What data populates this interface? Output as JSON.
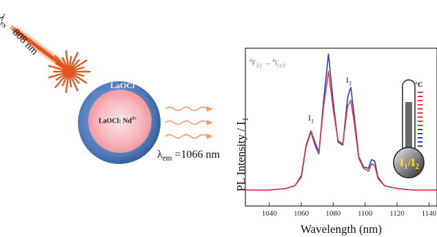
{
  "excitation": {
    "label": "λex =808 nm",
    "symbol": "λ",
    "sub": "ex",
    "value": "=808 nm",
    "color": "#e2561f"
  },
  "emission": {
    "symbol": "λ",
    "sub": "em",
    "value": "=1066 nm"
  },
  "particle": {
    "shell_label": "LaOCl",
    "core_label": "LaOCl: Nd",
    "core_label_sup": "3+",
    "shell_color": "#5b83bf",
    "core_color": "#f3a4ab"
  },
  "spectrum": {
    "transition_prefix": "4",
    "transition_text": "F",
    "transition_sub1": "3/2",
    "transition_arrow": "→",
    "transition_prefix2": "4",
    "transition_text2": "I",
    "transition_sub2": "11/2",
    "ylabel": "PL Intensity / I",
    "ylabel_sub": "1",
    "xlabel": "Wavelength (nm)",
    "x_ticks": [
      "1040",
      "1060",
      "1080",
      "1100",
      "1120",
      "1140"
    ],
    "peak1": "I",
    "peak1_sub": "1",
    "peak2": "I",
    "peak2_sub": "2"
  },
  "thermometer": {
    "unit": "°C",
    "ratio_a": "I",
    "ratio_a_sub": "1",
    "ratio_slash": "/",
    "ratio_b": "I",
    "ratio_b_sub": "2",
    "scale_colors": [
      "#e8333a",
      "#1f3fd0"
    ]
  },
  "chart_data": {
    "type": "line",
    "xlim": [
      1025,
      1145
    ],
    "series": [
      {
        "color": "#e8333a",
        "x": [
          1025,
          1040,
          1050,
          1056,
          1060,
          1063,
          1066,
          1069,
          1071,
          1074,
          1077,
          1080,
          1083,
          1086,
          1089,
          1091,
          1093,
          1096,
          1099,
          1102,
          1104,
          1106,
          1108,
          1112,
          1120,
          1130,
          1140,
          1145
        ],
        "y": [
          0.02,
          0.02,
          0.03,
          0.05,
          0.12,
          0.33,
          0.43,
          0.34,
          0.28,
          0.6,
          0.84,
          0.58,
          0.36,
          0.34,
          0.6,
          0.64,
          0.5,
          0.24,
          0.17,
          0.15,
          0.2,
          0.19,
          0.1,
          0.05,
          0.03,
          0.02,
          0.02,
          0.02
        ]
      },
      {
        "color": "#1f3fd0",
        "x": [
          1025,
          1040,
          1050,
          1056,
          1060,
          1063,
          1066,
          1069,
          1071,
          1074,
          1077,
          1080,
          1083,
          1086,
          1089,
          1091,
          1093,
          1096,
          1099,
          1102,
          1104,
          1106,
          1108,
          1112,
          1120,
          1130,
          1140,
          1145
        ],
        "y": [
          0.02,
          0.02,
          0.03,
          0.05,
          0.11,
          0.32,
          0.42,
          0.32,
          0.27,
          0.64,
          0.96,
          0.63,
          0.35,
          0.33,
          0.66,
          0.73,
          0.55,
          0.25,
          0.18,
          0.17,
          0.23,
          0.22,
          0.11,
          0.05,
          0.03,
          0.02,
          0.02,
          0.02
        ]
      }
    ]
  }
}
